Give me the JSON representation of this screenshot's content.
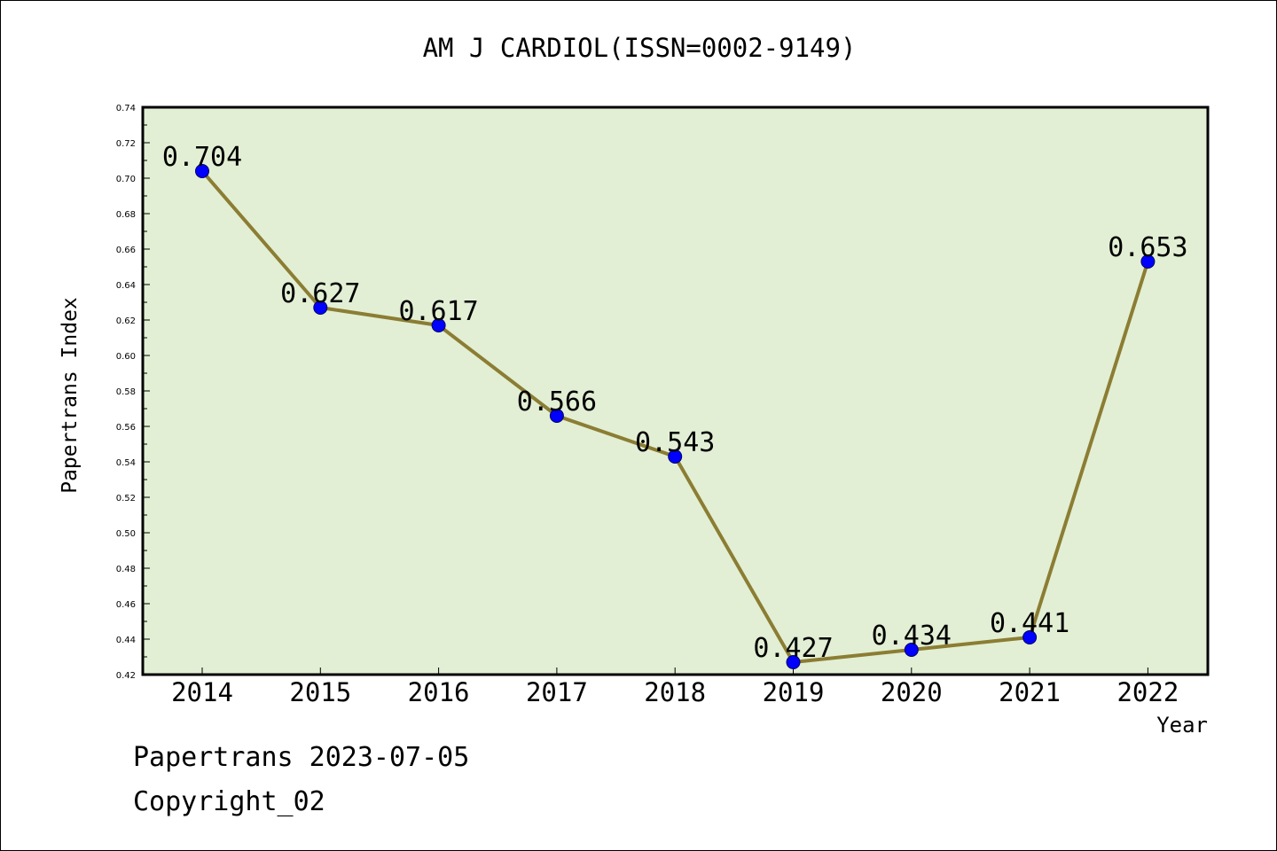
{
  "chart_data": {
    "type": "line",
    "title": "AM J CARDIOL(ISSN=0002-9149)",
    "xlabel": "Year",
    "ylabel": "Papertrans Index",
    "categories": [
      "2014",
      "2015",
      "2016",
      "2017",
      "2018",
      "2019",
      "2020",
      "2021",
      "2022"
    ],
    "series": [
      {
        "values": [
          0.704,
          0.627,
          0.617,
          0.566,
          0.543,
          0.427,
          0.434,
          0.441,
          0.653
        ],
        "labels": [
          "0.704",
          "0.627",
          "0.617",
          "0.566",
          "0.543",
          "0.427",
          "0.434",
          "0.441",
          "0.653"
        ]
      }
    ],
    "ylim": [
      0.42,
      0.74
    ],
    "yticks": [
      "0.42",
      "0.44",
      "0.46",
      "0.48",
      "0.50",
      "0.52",
      "0.54",
      "0.56",
      "0.58",
      "0.60",
      "0.62",
      "0.64",
      "0.66",
      "0.68",
      "0.70",
      "0.72",
      "0.74"
    ],
    "grid": false,
    "legend": "none"
  },
  "footer": {
    "line1": "Papertrans 2023-07-05",
    "line2": "Copyright_02"
  },
  "colors": {
    "plot_background": "#e2efd4",
    "line": "#8b7d33",
    "marker": "#0000ff",
    "axis": "#000000"
  }
}
